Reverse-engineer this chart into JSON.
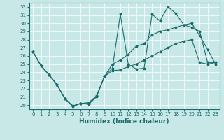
{
  "xlabel": "Humidex (Indice chaleur)",
  "bg_color": "#c8e8e8",
  "line_color": "#1a6b6b",
  "xlim": [
    -0.5,
    23.5
  ],
  "ylim": [
    19.5,
    32.5
  ],
  "xticks": [
    0,
    1,
    2,
    3,
    4,
    5,
    6,
    7,
    8,
    9,
    10,
    11,
    12,
    13,
    14,
    15,
    16,
    17,
    18,
    19,
    20,
    21,
    22,
    23
  ],
  "yticks": [
    20,
    21,
    22,
    23,
    24,
    25,
    26,
    27,
    28,
    29,
    30,
    31,
    32
  ],
  "line1_x": [
    0,
    1,
    2,
    3,
    4,
    5,
    6,
    7,
    8,
    9,
    10,
    11,
    12,
    13,
    14,
    15,
    16,
    17,
    18,
    19,
    20,
    21,
    22,
    23
  ],
  "line1_y": [
    26.5,
    24.8,
    23.7,
    22.5,
    20.8,
    19.8,
    20.2,
    20.1,
    21.0,
    23.5,
    24.5,
    31.1,
    25.0,
    24.4,
    24.5,
    31.1,
    30.3,
    32.0,
    31.2,
    29.8,
    30.0,
    28.5,
    26.8,
    25.0
  ],
  "line2_x": [
    0,
    1,
    2,
    3,
    4,
    5,
    6,
    7,
    8,
    9,
    10,
    11,
    12,
    13,
    14,
    15,
    16,
    17,
    18,
    19,
    20,
    21,
    22,
    23
  ],
  "line2_y": [
    26.5,
    24.8,
    23.7,
    22.5,
    20.8,
    19.9,
    20.2,
    20.2,
    21.1,
    23.5,
    25.0,
    25.5,
    26.2,
    27.2,
    27.5,
    28.6,
    29.0,
    29.2,
    29.5,
    29.8,
    29.5,
    29.0,
    25.2,
    25.2
  ],
  "line3_x": [
    0,
    1,
    2,
    3,
    4,
    5,
    6,
    7,
    8,
    9,
    10,
    11,
    12,
    13,
    14,
    15,
    16,
    17,
    18,
    19,
    20,
    21,
    22,
    23
  ],
  "line3_y": [
    26.5,
    24.8,
    23.7,
    22.5,
    20.8,
    19.9,
    20.2,
    20.3,
    21.1,
    23.5,
    24.2,
    24.3,
    24.7,
    25.0,
    25.5,
    26.0,
    26.5,
    27.0,
    27.5,
    27.8,
    28.0,
    25.2,
    25.0,
    25.2
  ],
  "grid_color": "#ffffff",
  "xlabel_fontsize": 6.5,
  "tick_labelsize": 5.5,
  "xlabel_fontweight": "bold"
}
